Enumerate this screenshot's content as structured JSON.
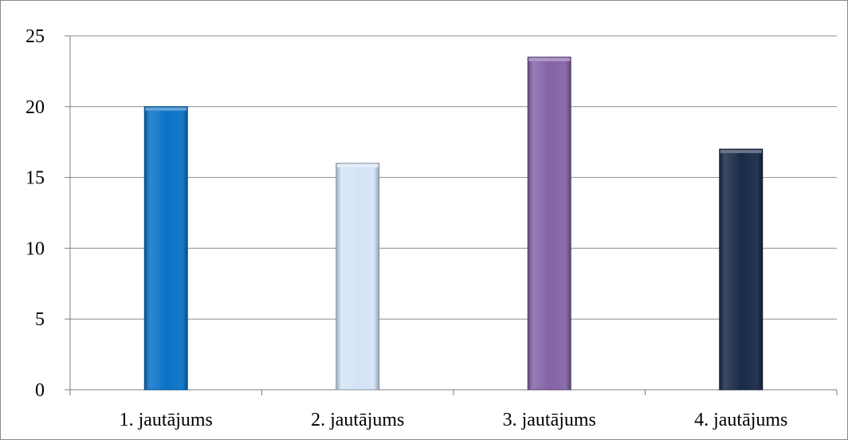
{
  "chart_data": {
    "type": "bar",
    "categories": [
      "1. jautājums",
      "2. jautājums",
      "3. jautājums",
      "4. jautājums"
    ],
    "values": [
      20,
      16,
      23.5,
      17
    ],
    "ylim": [
      0,
      25
    ],
    "yticks": [
      0,
      5,
      10,
      15,
      20,
      25
    ],
    "grid": true,
    "legend": "none",
    "bar_colors": [
      "#0a73c8",
      "#d4e4f7",
      "#8564a8",
      "#1a2b48"
    ],
    "gridline_color": "#8c8c8c",
    "axis_color": "#7f7f7f"
  }
}
